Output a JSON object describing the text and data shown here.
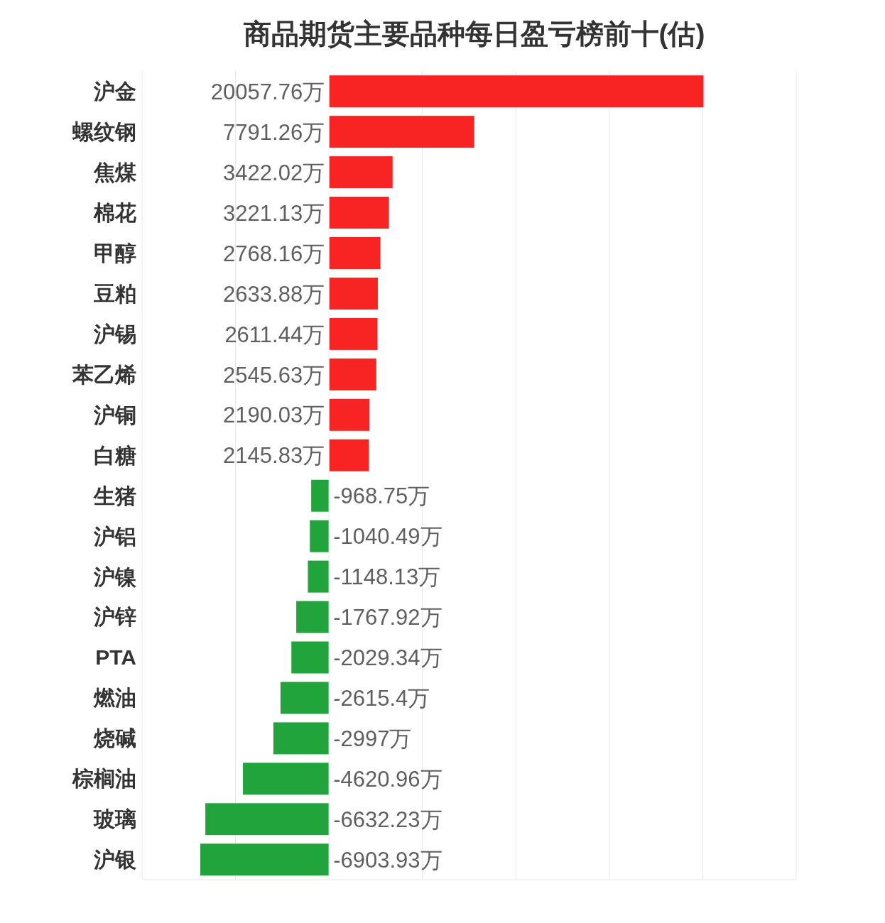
{
  "chart_data": {
    "type": "bar",
    "orientation": "horizontal",
    "title": "商品期货主要品种每日盈亏榜前十(估)",
    "categories": [
      "沪金",
      "螺纹钢",
      "焦煤",
      "棉花",
      "甲醇",
      "豆粕",
      "沪锡",
      "苯乙烯",
      "沪铜",
      "白糖",
      "生猪",
      "沪铝",
      "沪镍",
      "沪锌",
      "PTA",
      "燃油",
      "烧碱",
      "棕榈油",
      "玻璃",
      "沪银"
    ],
    "values": [
      20057.76,
      7791.26,
      3422.02,
      3221.13,
      2768.16,
      2633.88,
      2611.44,
      2545.63,
      2190.03,
      2145.83,
      -968.75,
      -1040.49,
      -1148.13,
      -1767.92,
      -2029.34,
      -2615.4,
      -2997,
      -4620.96,
      -6632.23,
      -6903.93
    ],
    "value_labels": [
      "20057.76万",
      "7791.26万",
      "3422.02万",
      "3221.13万",
      "2768.16万",
      "2633.88万",
      "2611.44万",
      "2545.63万",
      "2190.03万",
      "2145.83万",
      "-968.75万",
      "-1040.49万",
      "-1148.13万",
      "-1767.92万",
      "-2029.34万",
      "-2615.4万",
      "-2997万",
      "-4620.96万",
      "-6632.23万",
      "-6903.93万"
    ],
    "colors": [
      "#f82424",
      "#f82424",
      "#f82424",
      "#f82424",
      "#f82424",
      "#f82424",
      "#f82424",
      "#f82424",
      "#f82424",
      "#f82424",
      "#21a43b",
      "#21a43b",
      "#21a43b",
      "#21a43b",
      "#21a43b",
      "#21a43b",
      "#21a43b",
      "#21a43b",
      "#21a43b",
      "#21a43b"
    ],
    "xlim": [
      -10000,
      25000
    ],
    "xticks": [
      {
        "value": -10000,
        "label": null
      },
      {
        "value": -5000,
        "label": null
      },
      {
        "value": 0,
        "label": null
      },
      {
        "value": 5000,
        "label": null
      },
      {
        "value": 10000,
        "label": null
      },
      {
        "value": 15000,
        "label": null
      },
      {
        "value": 20000,
        "label": null
      },
      {
        "value": 25000,
        "label": null
      }
    ],
    "grid": "x",
    "tick_labels": "y",
    "legend": false
  }
}
